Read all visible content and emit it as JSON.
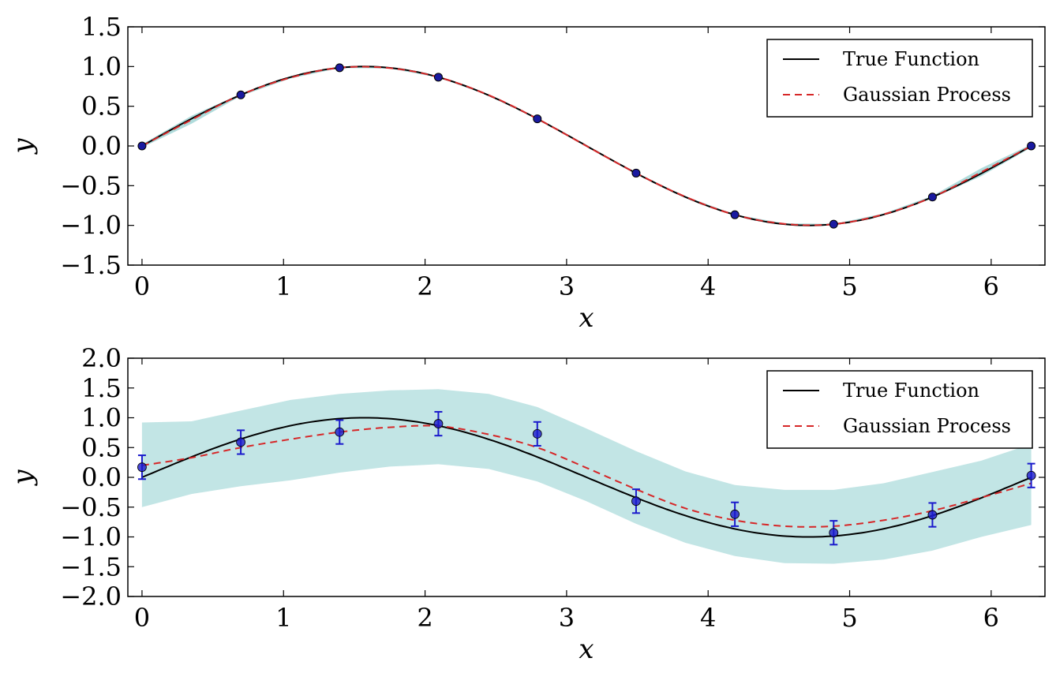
{
  "chart_data": [
    {
      "type": "line",
      "panel": "top",
      "xlabel": "x",
      "ylabel": "y",
      "xlim": [
        -0.1,
        6.38
      ],
      "ylim": [
        -1.5,
        1.5
      ],
      "xticks": [
        0,
        1,
        2,
        3,
        4,
        5,
        6
      ],
      "xtick_labels": [
        "0",
        "1",
        "2",
        "3",
        "4",
        "5",
        "6"
      ],
      "yticks": [
        1.5,
        1.0,
        0.5,
        0.0,
        -0.5,
        -1.0,
        -1.5
      ],
      "ytick_labels": [
        "1.5",
        "1.0",
        "0.5",
        "0.0",
        "−0.5",
        "−1.0",
        "−1.5"
      ],
      "legend_position": "top-right",
      "series": [
        {
          "name": "True Function",
          "kind": "line",
          "style": "solid",
          "color": "#000000",
          "function": "sin(x)",
          "x_range": [
            0,
            6.2832
          ]
        },
        {
          "name": "Gaussian Process",
          "kind": "line",
          "style": "dashed",
          "color": "#d62728",
          "x": [
            0,
            0.35,
            0.698,
            1.05,
            1.396,
            1.75,
            2.094,
            2.45,
            2.793,
            3.14,
            3.491,
            3.84,
            4.189,
            4.54,
            4.887,
            5.24,
            5.585,
            5.93,
            6.283
          ],
          "y": [
            0,
            0.33,
            0.643,
            0.86,
            0.985,
            0.98,
            0.866,
            0.64,
            0.342,
            0.0,
            -0.342,
            -0.64,
            -0.866,
            -0.98,
            -0.985,
            -0.86,
            -0.643,
            -0.33,
            0
          ]
        },
        {
          "kind": "band",
          "color": "#b0dcdc",
          "x": [
            0,
            0.35,
            0.698,
            1.05,
            1.396,
            1.75,
            2.094,
            2.45,
            2.793,
            3.14,
            3.491,
            3.84,
            4.189,
            4.54,
            4.887,
            5.24,
            5.585,
            5.93,
            6.283
          ],
          "lower": [
            -0.02,
            0.28,
            0.63,
            0.85,
            0.98,
            0.975,
            0.862,
            0.635,
            0.338,
            -0.005,
            -0.346,
            -0.645,
            -0.87,
            -0.985,
            -0.99,
            -0.87,
            -0.658,
            -0.38,
            -0.02
          ],
          "upper": [
            0.02,
            0.38,
            0.656,
            0.87,
            0.99,
            0.985,
            0.87,
            0.645,
            0.346,
            0.005,
            -0.338,
            -0.635,
            -0.862,
            -0.975,
            -0.98,
            -0.85,
            -0.628,
            -0.28,
            0.02
          ]
        },
        {
          "kind": "scatter",
          "color": "#1a1aa0",
          "x": [
            0,
            0.698,
            1.396,
            2.094,
            2.793,
            3.491,
            4.189,
            4.887,
            5.585,
            6.283
          ],
          "y": [
            0,
            0.643,
            0.985,
            0.866,
            0.342,
            -0.342,
            -0.866,
            -0.985,
            -0.643,
            0
          ]
        }
      ]
    },
    {
      "type": "line",
      "panel": "bottom",
      "xlabel": "x",
      "ylabel": "y",
      "xlim": [
        -0.1,
        6.38
      ],
      "ylim": [
        -2.0,
        2.0
      ],
      "xticks": [
        0,
        1,
        2,
        3,
        4,
        5,
        6
      ],
      "xtick_labels": [
        "0",
        "1",
        "2",
        "3",
        "4",
        "5",
        "6"
      ],
      "yticks": [
        2.0,
        1.5,
        1.0,
        0.5,
        0.0,
        -0.5,
        -1.0,
        -1.5,
        -2.0
      ],
      "ytick_labels": [
        "2.0",
        "1.5",
        "1.0",
        "0.5",
        "0.0",
        "−0.5",
        "−1.0",
        "−1.5",
        "−2.0"
      ],
      "legend_position": "top-right",
      "series": [
        {
          "name": "True Function",
          "kind": "line",
          "style": "solid",
          "color": "#000000",
          "function": "sin(x)",
          "x_range": [
            0,
            6.2832
          ]
        },
        {
          "name": "Gaussian Process",
          "kind": "line",
          "style": "dashed",
          "color": "#d62728",
          "x": [
            0,
            0.35,
            0.698,
            1.05,
            1.396,
            1.75,
            2.094,
            2.45,
            2.793,
            3.14,
            3.491,
            3.84,
            4.189,
            4.54,
            4.887,
            5.24,
            5.585,
            5.93,
            6.283
          ],
          "y": [
            0.2,
            0.33,
            0.5,
            0.64,
            0.76,
            0.84,
            0.86,
            0.72,
            0.5,
            0.16,
            -0.2,
            -0.52,
            -0.72,
            -0.82,
            -0.82,
            -0.72,
            -0.56,
            -0.34,
            -0.1
          ]
        },
        {
          "kind": "band",
          "color": "#c2e5e5",
          "x": [
            0,
            0.35,
            0.698,
            1.05,
            1.396,
            1.75,
            2.094,
            2.45,
            2.793,
            3.14,
            3.491,
            3.84,
            4.189,
            4.54,
            4.887,
            5.24,
            5.585,
            5.93,
            6.283
          ],
          "lower": [
            -0.5,
            -0.28,
            -0.15,
            -0.05,
            0.08,
            0.18,
            0.22,
            0.14,
            -0.07,
            -0.4,
            -0.78,
            -1.1,
            -1.32,
            -1.44,
            -1.45,
            -1.38,
            -1.23,
            -1.0,
            -0.8
          ],
          "upper": [
            0.92,
            0.94,
            1.12,
            1.3,
            1.4,
            1.46,
            1.48,
            1.4,
            1.18,
            0.82,
            0.44,
            0.1,
            -0.13,
            -0.21,
            -0.21,
            -0.1,
            0.09,
            0.28,
            0.56
          ]
        },
        {
          "kind": "errorbar",
          "color": "#1a1acc",
          "yerr": 0.2,
          "x": [
            0,
            0.698,
            1.396,
            2.094,
            2.793,
            3.491,
            4.189,
            4.887,
            5.585,
            6.283
          ],
          "y": [
            0.17,
            0.59,
            0.76,
            0.9,
            0.73,
            -0.4,
            -0.62,
            -0.93,
            -0.63,
            0.03
          ]
        }
      ]
    }
  ]
}
